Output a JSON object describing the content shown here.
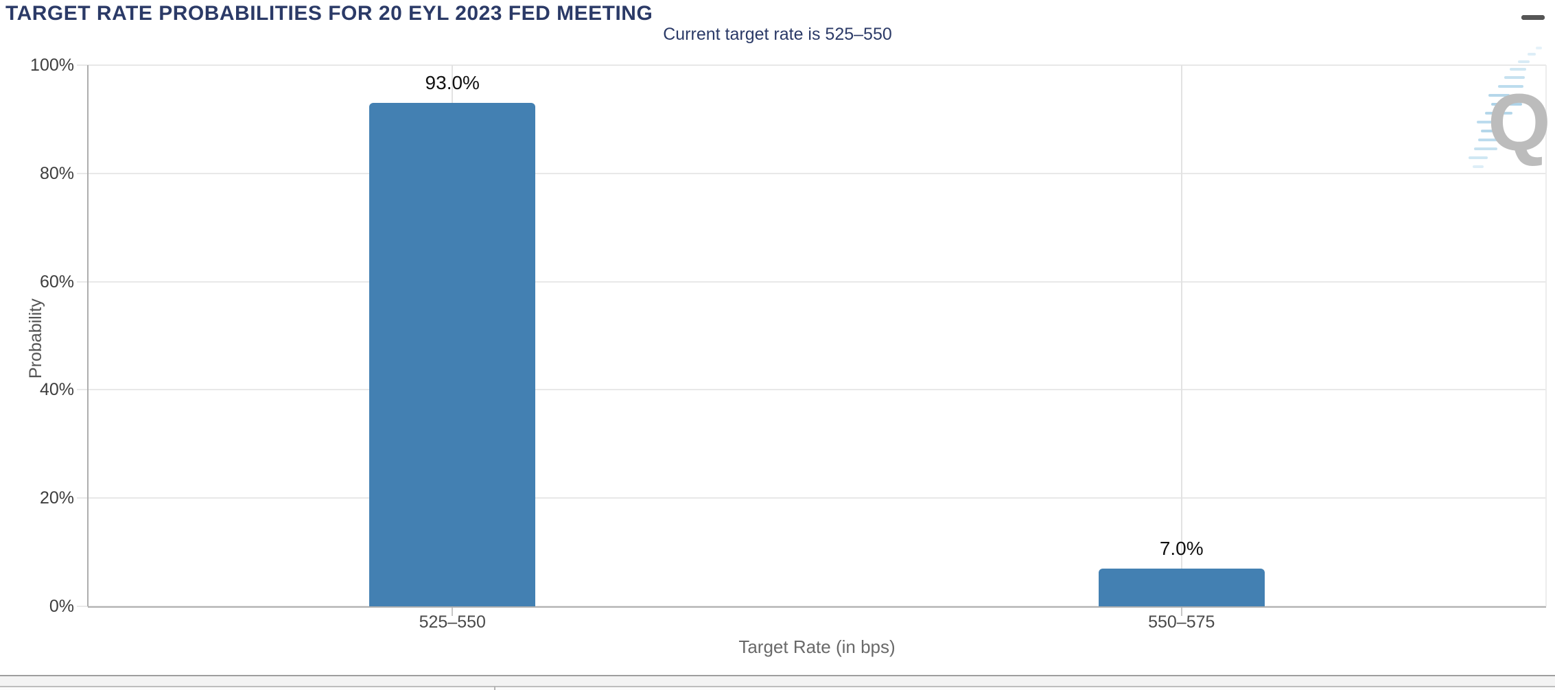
{
  "header": {
    "title": "TARGET RATE PROBABILITIES FOR 20 EYL 2023 FED MEETING",
    "menu_icon": "hamburger-menu-icon"
  },
  "chart_data": {
    "type": "bar",
    "title": "TARGET RATE PROBABILITIES FOR 20 EYL 2023 FED MEETING",
    "subtitle": "Current target rate is 525–550",
    "categories": [
      "525–550",
      "550–575"
    ],
    "values": [
      93.0,
      7.0
    ],
    "data_labels": [
      "93.0%",
      "7.0%"
    ],
    "xlabel": "Target Rate (in bps)",
    "ylabel": "Probability",
    "ylim": [
      0,
      100
    ],
    "ytick_values": [
      0,
      20,
      40,
      60,
      80,
      100
    ],
    "ytick_labels": [
      "0%",
      "20%",
      "40%",
      "60%",
      "80%",
      "100%"
    ],
    "grid": true,
    "legend": "none",
    "bar_color": "#4380b2"
  },
  "watermark": {
    "letter": "Q"
  },
  "colors": {
    "title_navy": "#2b3a67",
    "bar_blue": "#4380b2",
    "gridline": "#e8e8e8",
    "axis_gray": "#b0b0b0",
    "watermark_gray": "#bcbcbc",
    "watermark_blue": "#b5d7ea"
  }
}
